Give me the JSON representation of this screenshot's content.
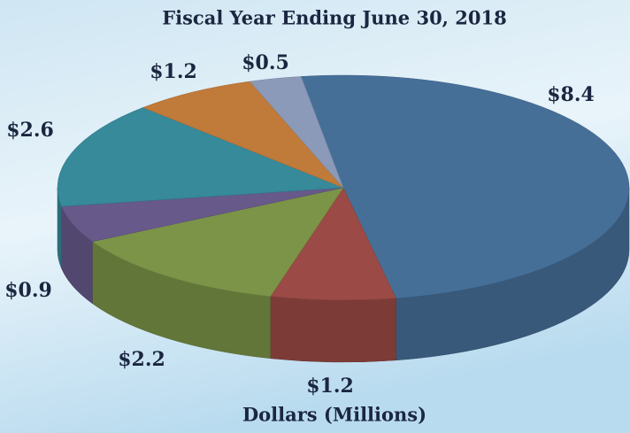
{
  "chart_data": {
    "type": "pie",
    "title": "Fiscal Year Ending June 30, 2018",
    "subtitle": "Dollars (Millions)",
    "values": [
      8.4,
      1.2,
      2.2,
      0.9,
      2.6,
      1.2,
      0.5
    ],
    "value_labels": [
      "$8.4",
      "$1.2",
      "$2.2",
      "$0.9",
      "$2.6",
      "$1.2",
      "$0.5"
    ],
    "colors": [
      "#466f98",
      "#9b4a45",
      "#7b9448",
      "#67598a",
      "#368a9a",
      "#c07a3a",
      "#8a9ab8"
    ]
  }
}
